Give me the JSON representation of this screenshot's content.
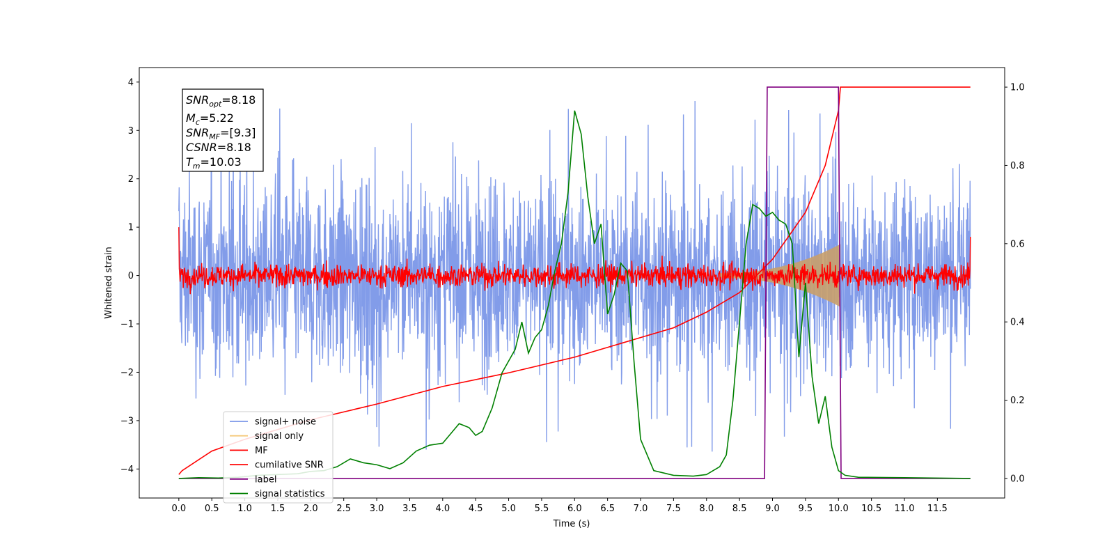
{
  "chart_data": {
    "type": "line",
    "xlabel": "Time (s)",
    "ylabel": "Whitened strain",
    "xlim": [
      -0.6,
      12.52
    ],
    "ylim": [
      -4.6,
      4.3
    ],
    "y2lim": [
      -0.05,
      1.05
    ],
    "x_ticks": [
      "0.0",
      "0.5",
      "1.0",
      "1.5",
      "2.0",
      "2.5",
      "3.0",
      "3.5",
      "4.0",
      "4.5",
      "5.0",
      "5.5",
      "6.0",
      "6.5",
      "7.0",
      "7.5",
      "8.0",
      "8.5",
      "9.0",
      "9.5",
      "10.0",
      "10.5",
      "11.0",
      "11.5"
    ],
    "y_ticks": [
      "4",
      "3",
      "2",
      "1",
      "0",
      "−1",
      "−2",
      "−3",
      "−4"
    ],
    "y2_ticks": [
      "1.0",
      "0.8",
      "0.6",
      "0.4",
      "0.2",
      "0.0"
    ],
    "grid": false,
    "legend_position": "lower-left",
    "annotation": {
      "snr_opt": "=8.18",
      "mc": "=5.22",
      "snr_mf": "=[9.3]",
      "csnr": "=8.18",
      "tm": "=10.03"
    },
    "series": [
      {
        "name": "signal+ noise",
        "color": "#7b97e8",
        "kind": "noise",
        "amplitude": 1.0,
        "peak_max": 3.9,
        "peak_min": -4.1,
        "x_range": [
          0,
          12
        ]
      },
      {
        "name": "signal only",
        "color": "#f5c97a",
        "kind": "chirp",
        "start": 8.2,
        "end": 10.03,
        "max_amplitude": 0.6
      },
      {
        "name": "MF",
        "color": "#ff0000",
        "kind": "noise",
        "amplitude": 0.12,
        "x_range": [
          0,
          12
        ]
      },
      {
        "name": "cumilative SNR",
        "color": "#ff0000",
        "kind": "curve",
        "axis": "right",
        "x": [
          0,
          0.05,
          0.5,
          1.0,
          2.0,
          3.0,
          4.0,
          5.0,
          6.0,
          7.0,
          7.5,
          8.0,
          8.5,
          9.0,
          9.5,
          9.8,
          10.0,
          10.03,
          12.0
        ],
        "y": [
          0.01,
          0.02,
          0.07,
          0.1,
          0.15,
          0.19,
          0.235,
          0.27,
          0.31,
          0.36,
          0.385,
          0.425,
          0.475,
          0.56,
          0.68,
          0.8,
          0.94,
          1.0,
          1.0
        ]
      },
      {
        "name": "label",
        "color": "#800080",
        "kind": "step",
        "axis": "right",
        "x": [
          0,
          8.88,
          8.92,
          10.0,
          10.04,
          12.0
        ],
        "y": [
          0,
          0,
          1,
          1,
          0,
          0
        ]
      },
      {
        "name": "signal statistics",
        "color": "#008000",
        "kind": "curve",
        "axis": "right",
        "x": [
          0.0,
          0.3,
          0.6,
          0.9,
          1.2,
          1.5,
          1.8,
          2.0,
          2.2,
          2.4,
          2.6,
          2.8,
          3.0,
          3.2,
          3.4,
          3.6,
          3.8,
          4.0,
          4.15,
          4.25,
          4.4,
          4.5,
          4.6,
          4.75,
          4.9,
          5.0,
          5.1,
          5.2,
          5.3,
          5.4,
          5.5,
          5.6,
          5.7,
          5.8,
          5.9,
          6.0,
          6.1,
          6.2,
          6.3,
          6.4,
          6.5,
          6.6,
          6.7,
          6.8,
          6.9,
          7.0,
          7.2,
          7.5,
          7.8,
          8.0,
          8.2,
          8.3,
          8.4,
          8.5,
          8.6,
          8.7,
          8.8,
          8.9,
          9.0,
          9.1,
          9.2,
          9.3,
          9.4,
          9.5,
          9.6,
          9.7,
          9.8,
          9.9,
          10.0,
          10.1,
          10.3,
          11.0,
          12.0
        ],
        "y": [
          0.0,
          0.002,
          0.001,
          0.003,
          0.008,
          0.01,
          0.012,
          0.018,
          0.02,
          0.03,
          0.05,
          0.04,
          0.035,
          0.025,
          0.04,
          0.07,
          0.085,
          0.09,
          0.12,
          0.14,
          0.13,
          0.11,
          0.12,
          0.18,
          0.27,
          0.3,
          0.33,
          0.4,
          0.32,
          0.36,
          0.38,
          0.44,
          0.53,
          0.6,
          0.73,
          0.94,
          0.88,
          0.72,
          0.6,
          0.65,
          0.42,
          0.47,
          0.55,
          0.53,
          0.3,
          0.1,
          0.02,
          0.008,
          0.006,
          0.01,
          0.03,
          0.06,
          0.2,
          0.4,
          0.6,
          0.7,
          0.69,
          0.67,
          0.68,
          0.66,
          0.65,
          0.6,
          0.31,
          0.5,
          0.26,
          0.14,
          0.21,
          0.08,
          0.02,
          0.008,
          0.003,
          0.002,
          0.0
        ]
      }
    ]
  }
}
